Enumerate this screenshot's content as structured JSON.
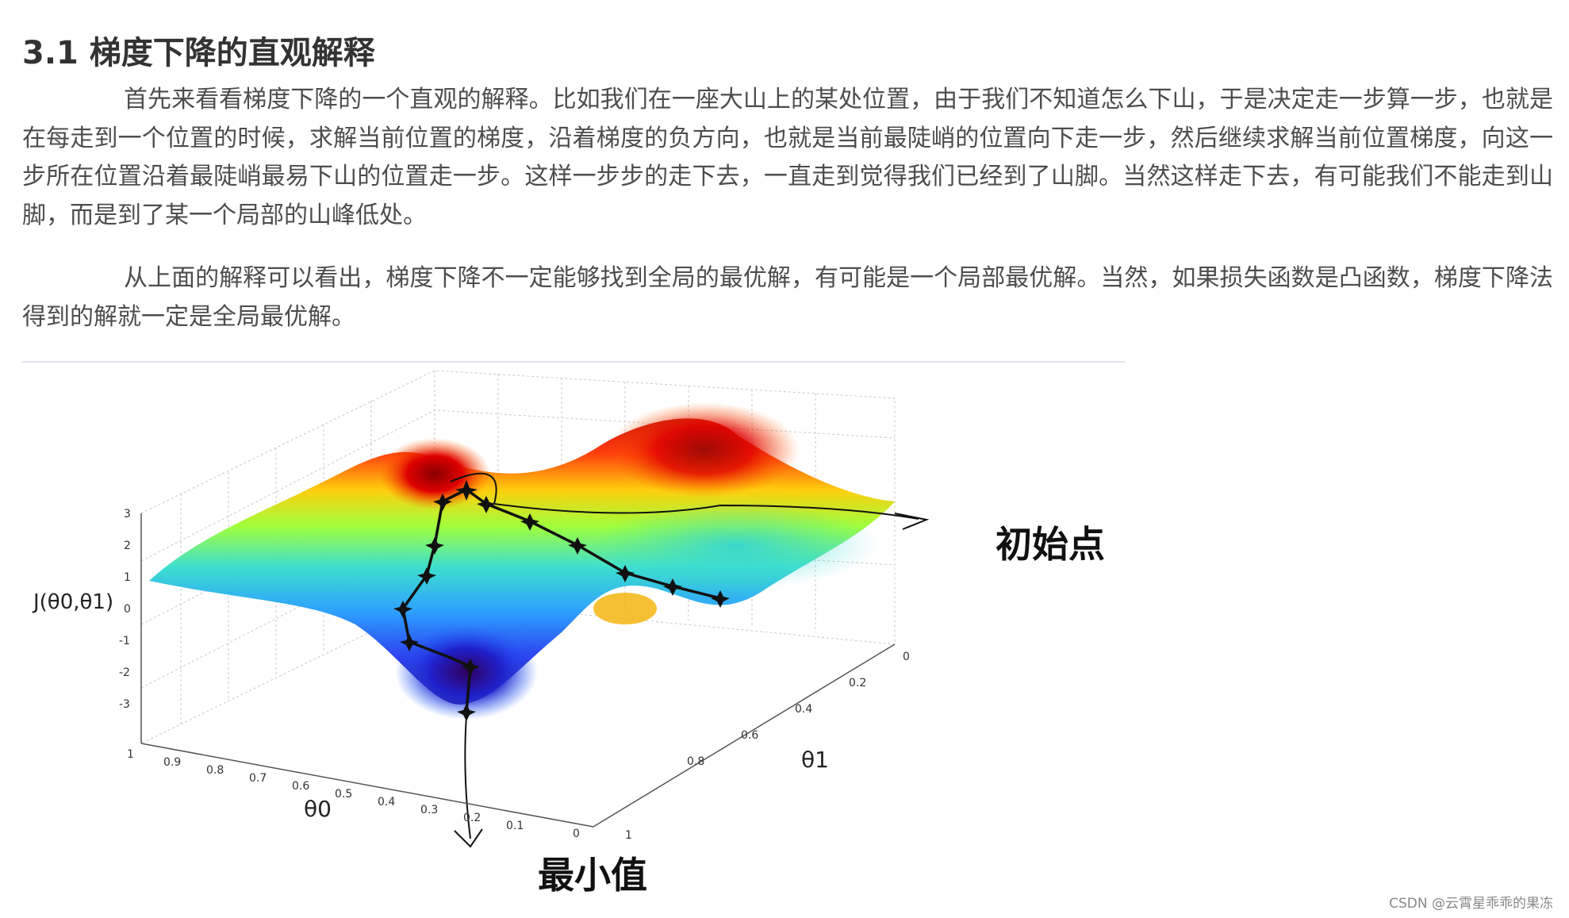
{
  "article": {
    "heading": "3.1 梯度下降的直观解释",
    "paragraphs": [
      "首先来看看梯度下降的一个直观的解释。比如我们在一座大山上的某处位置，由于我们不知道怎么下山，于是决定走一步算一步，也就是在每走到一个位置的时候，求解当前位置的梯度，沿着梯度的负方向，也就是当前最陡峭的位置向下走一步，然后继续求解当前位置梯度，向这一步所在位置沿着最陡峭最易下山的位置走一步。这样一步步的走下去，一直走到觉得我们已经到了山脚。当然这样走下去，有可能我们不能走到山脚，而是到了某一个局部的山峰低处。",
      "从上面的解释可以看出，梯度下降不一定能够找到全局的最优解，有可能是一个局部最优解。当然，如果损失函数是凸函数，梯度下降法得到的解就一定是全局最优解。"
    ]
  },
  "figure": {
    "z_label": "J(θ0,θ1)",
    "x_label": "θ0",
    "y_label": "θ1",
    "z_ticks": [
      "3",
      "2",
      "1",
      "0",
      "-1",
      "-2",
      "-3"
    ],
    "x_ticks": [
      "1",
      "0.9",
      "0.8",
      "0.7",
      "0.6",
      "0.5",
      "0.4",
      "0.3",
      "0.2",
      "0.1",
      "0"
    ],
    "y_ticks": [
      "0",
      "0.2",
      "0.4",
      "0.6",
      "0.8",
      "1"
    ],
    "annotations": {
      "start": "初始点",
      "minimum": "最小值"
    }
  },
  "watermark": "CSDN @云霄星乖乖的果冻"
}
